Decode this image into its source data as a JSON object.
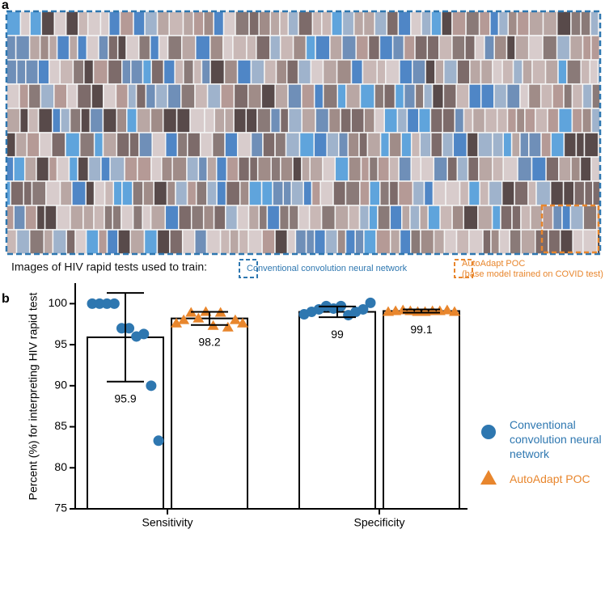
{
  "panel_a": {
    "label": "a",
    "caption": "Images of HIV rapid tests used to train:",
    "legend": [
      "Conventional convolution neural network",
      "AutoAdapt POC",
      "(base model trained on COVID test)"
    ]
  },
  "chart_data": {
    "type": "bar",
    "panel_label": "b",
    "y_label": "Percent  (%) for interpreting HIV rapid test",
    "categories": [
      "Sensitivity",
      "Specificity"
    ],
    "ylim": [
      75,
      102.5
    ],
    "yticks": [
      75,
      80,
      85,
      90,
      95,
      100
    ],
    "series": [
      {
        "name": "Conventional convolution neural network",
        "color": "#2e77b0",
        "marker": "circle",
        "values": [
          95.9,
          99.0
        ],
        "errors": [
          5.4,
          0.65
        ],
        "points": [
          [
            100,
            100,
            100,
            100,
            97,
            97,
            96,
            96.3,
            90,
            83.3
          ],
          [
            98.7,
            99,
            99.3,
            99.7,
            99.4,
            99.7,
            98.6,
            99,
            99.3,
            100.1
          ]
        ]
      },
      {
        "name": "AutoAdapt POC",
        "color": "#e8862d",
        "marker": "triangle",
        "values": [
          98.2,
          99.1
        ],
        "errors": [
          0.8,
          0.2
        ],
        "points": [
          [
            97.6,
            98,
            98.9,
            98.2,
            99,
            97.3,
            98.9,
            97.1,
            98,
            97.6
          ],
          [
            99,
            99.1,
            99.2,
            99.1,
            99,
            99,
            99.1,
            99.1,
            99.2,
            99
          ]
        ]
      }
    ]
  }
}
